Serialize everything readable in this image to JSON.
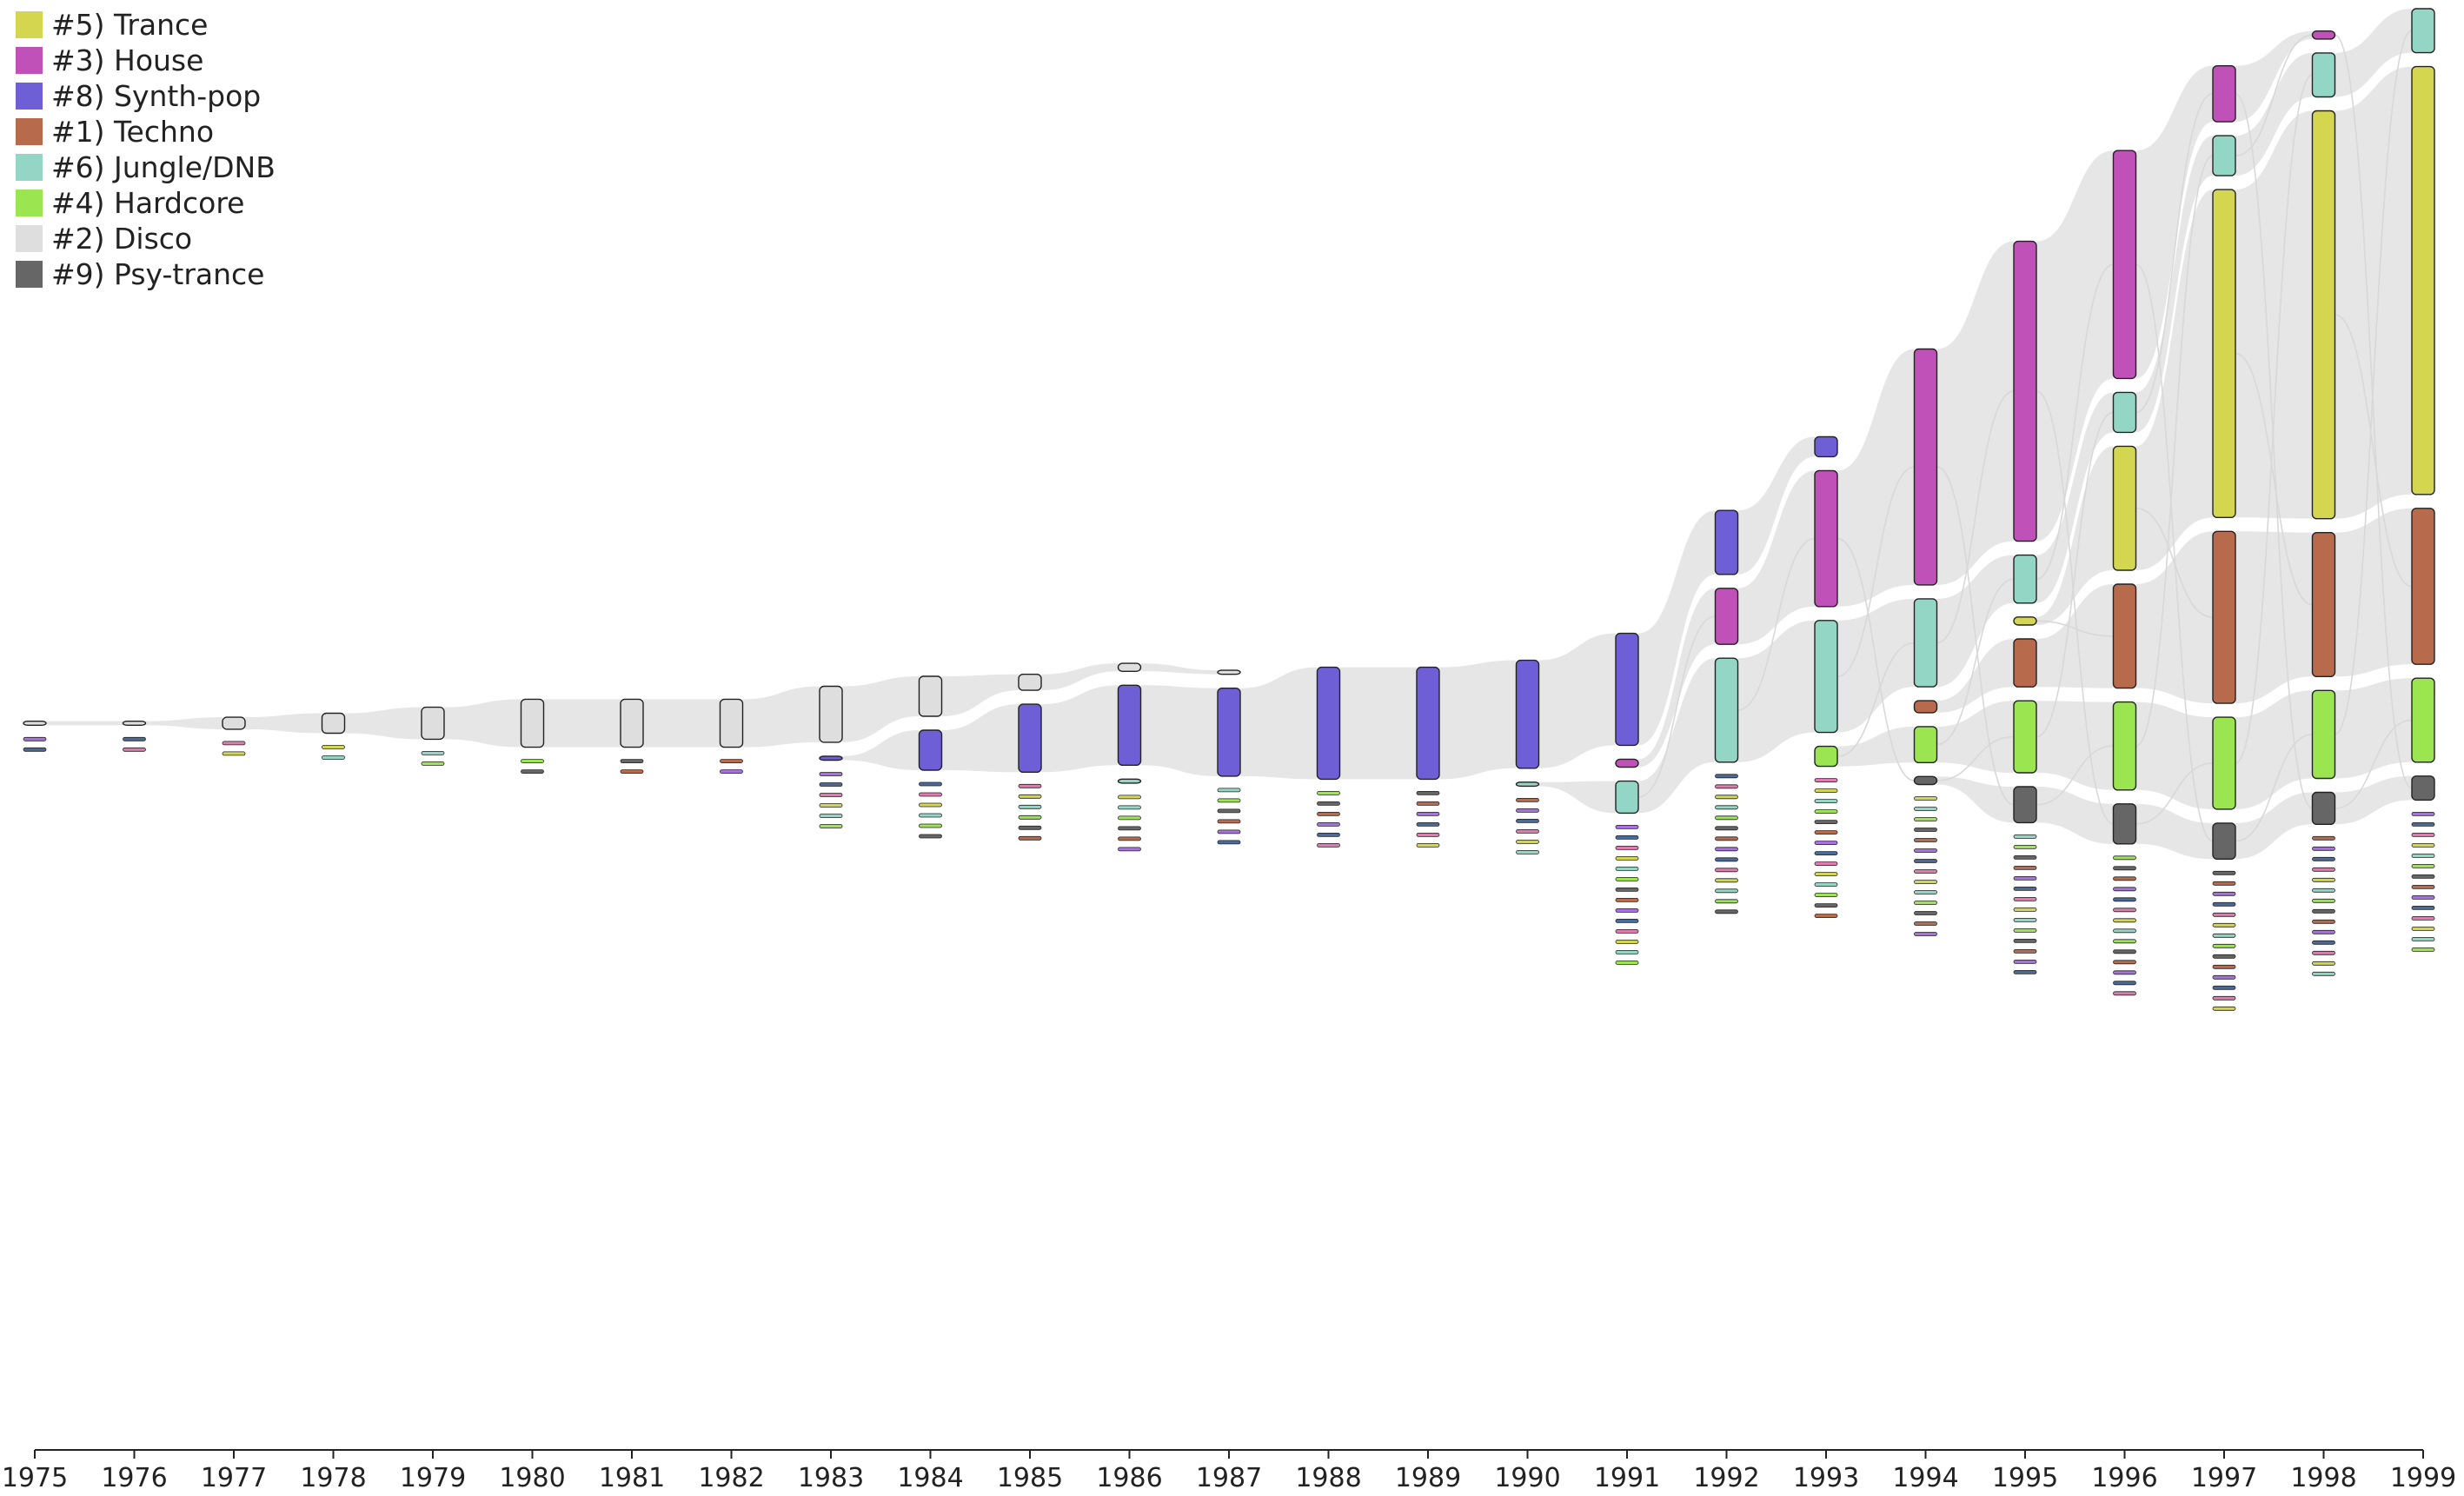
{
  "chart_data": {
    "type": "area",
    "title": "",
    "xlabel": "",
    "ylabel": "",
    "x_ticks": [
      "1975",
      "1976",
      "1977",
      "1978",
      "1979",
      "1980",
      "1981",
      "1982",
      "1983",
      "1984",
      "1985",
      "1986",
      "1987",
      "1988",
      "1989",
      "1990",
      "1991",
      "1992",
      "1993",
      "1994",
      "1995",
      "1996",
      "1997",
      "1998",
      "1999"
    ],
    "grid": false,
    "legend_position": "top-left",
    "legend": [
      {
        "label": "#5) Trance",
        "color": "#d4d64f"
      },
      {
        "label": "#3) House",
        "color": "#c051b8"
      },
      {
        "label": "#8) Synth-pop",
        "color": "#6f5fd6"
      },
      {
        "label": "#1) Techno",
        "color": "#b86a4c"
      },
      {
        "label": "#6) Jungle/DNB",
        "color": "#94d6c6"
      },
      {
        "label": "#4) Hardcore",
        "color": "#9be550"
      },
      {
        "label": "#2) Disco",
        "color": "#dedede"
      },
      {
        "label": "#9) Psy-trance",
        "color": "#666666"
      }
    ],
    "extra_colors": {
      "violet": "#a970e0",
      "steel": "#4a6a9a",
      "pink": "#e07ab0",
      "flow": "#e2e2e2"
    },
    "series": [
      {
        "name": "#2) Disco",
        "color": "#dedede",
        "values": [
          1,
          1,
          3,
          5,
          8,
          12,
          12,
          12,
          14,
          10,
          4,
          2,
          1,
          0,
          0,
          0,
          0,
          0,
          0,
          0,
          0,
          0,
          0,
          0,
          0
        ]
      },
      {
        "name": "#8) Synth-pop",
        "color": "#6f5fd6",
        "values": [
          0,
          0,
          0,
          0,
          0,
          0,
          0,
          0,
          1,
          10,
          17,
          20,
          22,
          28,
          28,
          27,
          28,
          16,
          5,
          0,
          0,
          0,
          0,
          0,
          0
        ]
      },
      {
        "name": "#3) House",
        "color": "#c051b8",
        "values": [
          0,
          0,
          0,
          0,
          0,
          0,
          0,
          0,
          0,
          0,
          0,
          0,
          0,
          0,
          0,
          0,
          2,
          14,
          34,
          59,
          75,
          57,
          14,
          2,
          0
        ]
      },
      {
        "name": "#6) Jungle/DNB",
        "color": "#94d6c6",
        "values": [
          0,
          0,
          0,
          0,
          0,
          0,
          0,
          0,
          0,
          0,
          0,
          1,
          0,
          0,
          0,
          1,
          8,
          26,
          28,
          22,
          12,
          10,
          10,
          11,
          11
        ]
      },
      {
        "name": "#5) Trance",
        "color": "#d4d64f",
        "values": [
          0,
          0,
          0,
          0,
          0,
          0,
          0,
          0,
          0,
          0,
          0,
          0,
          0,
          0,
          0,
          0,
          0,
          0,
          0,
          0,
          2,
          31,
          82,
          102,
          107
        ]
      },
      {
        "name": "#1) Techno",
        "color": "#b86a4c",
        "values": [
          0,
          0,
          0,
          0,
          0,
          0,
          0,
          0,
          0,
          0,
          0,
          0,
          0,
          0,
          0,
          0,
          0,
          0,
          0,
          3,
          12,
          26,
          43,
          36,
          39
        ]
      },
      {
        "name": "#4) Hardcore",
        "color": "#9be550",
        "values": [
          0,
          0,
          0,
          0,
          0,
          0,
          0,
          0,
          0,
          0,
          0,
          0,
          0,
          0,
          0,
          0,
          0,
          0,
          5,
          9,
          18,
          22,
          23,
          22,
          21
        ]
      },
      {
        "name": "#9) Psy-trance",
        "color": "#666666",
        "values": [
          0,
          0,
          0,
          0,
          0,
          0,
          0,
          0,
          0,
          0,
          0,
          0,
          0,
          0,
          0,
          0,
          0,
          0,
          0,
          2,
          9,
          10,
          9,
          8,
          6
        ]
      }
    ]
  }
}
